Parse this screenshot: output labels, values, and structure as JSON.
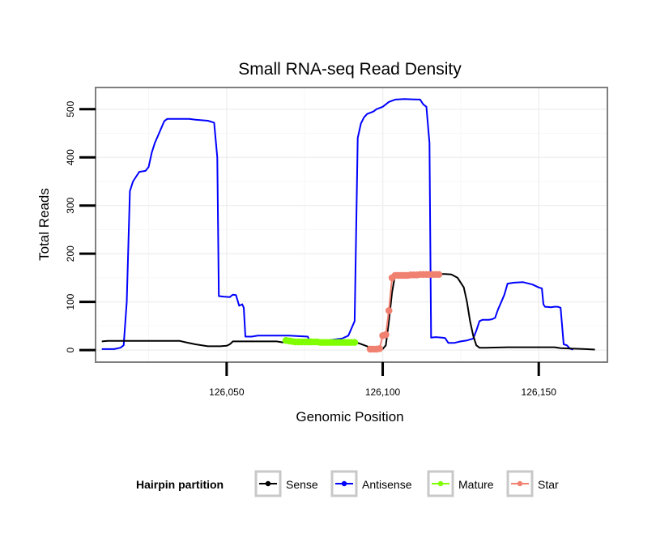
{
  "chart_data": {
    "type": "line",
    "title": "Small RNA-seq Read Density",
    "xlabel": "Genomic Position",
    "ylabel": "Total Reads",
    "xlim": [
      126008,
      126172
    ],
    "ylim": [
      -25,
      545
    ],
    "x_ticks": [
      126050,
      126100,
      126150
    ],
    "x_tick_labels": [
      "126,050",
      "126,100",
      "126,150"
    ],
    "y_ticks": [
      0,
      100,
      200,
      300,
      400,
      500
    ],
    "y_tick_labels": [
      "0",
      "100",
      "200",
      "300",
      "400",
      "500"
    ],
    "grid": true,
    "legend": {
      "title": "Hairpin partition",
      "position": "bottom",
      "entries": [
        "Sense",
        "Antisense",
        "Mature",
        "Star"
      ]
    },
    "series": [
      {
        "name": "Sense",
        "color": "#000000",
        "marker": "line",
        "points": [
          [
            126010,
            18
          ],
          [
            126012,
            19
          ],
          [
            126020,
            19
          ],
          [
            126030,
            19
          ],
          [
            126035,
            19
          ],
          [
            126037,
            16
          ],
          [
            126040,
            12
          ],
          [
            126044,
            8
          ],
          [
            126048,
            8
          ],
          [
            126050,
            9
          ],
          [
            126051,
            12
          ],
          [
            126052,
            18
          ],
          [
            126060,
            18
          ],
          [
            126066,
            18
          ],
          [
            126068,
            16
          ],
          [
            126070,
            20
          ],
          [
            126075,
            20
          ],
          [
            126078,
            17
          ],
          [
            126082,
            16
          ],
          [
            126090,
            16
          ],
          [
            126092,
            15
          ],
          [
            126095,
            8
          ],
          [
            126096,
            2
          ],
          [
            126100,
            2
          ],
          [
            126101,
            10
          ],
          [
            126102,
            60
          ],
          [
            126103,
            120
          ],
          [
            126104,
            157
          ],
          [
            126110,
            158
          ],
          [
            126118,
            158
          ],
          [
            126120,
            158
          ],
          [
            126122,
            157
          ],
          [
            126124,
            150
          ],
          [
            126126,
            130
          ],
          [
            126127,
            100
          ],
          [
            126128,
            60
          ],
          [
            126129,
            30
          ],
          [
            126130,
            10
          ],
          [
            126131,
            5
          ],
          [
            126133,
            5
          ],
          [
            126140,
            6
          ],
          [
            126150,
            6
          ],
          [
            126155,
            6
          ],
          [
            126157,
            4
          ],
          [
            126165,
            2
          ],
          [
            126168,
            1
          ]
        ]
      },
      {
        "name": "Antisense",
        "color": "#0000ff",
        "marker": "line",
        "points": [
          [
            126010,
            2
          ],
          [
            126014,
            2
          ],
          [
            126016,
            5
          ],
          [
            126017,
            10
          ],
          [
            126018,
            100
          ],
          [
            126019,
            330
          ],
          [
            126020,
            350
          ],
          [
            126021,
            360
          ],
          [
            126022,
            370
          ],
          [
            126024,
            372
          ],
          [
            126025,
            380
          ],
          [
            126026,
            410
          ],
          [
            126027,
            430
          ],
          [
            126028,
            445
          ],
          [
            126029,
            460
          ],
          [
            126030,
            475
          ],
          [
            126031,
            480
          ],
          [
            126033,
            480
          ],
          [
            126038,
            480
          ],
          [
            126040,
            478
          ],
          [
            126044,
            476
          ],
          [
            126046,
            472
          ],
          [
            126047,
            400
          ],
          [
            126047.5,
            112
          ],
          [
            126049,
            111
          ],
          [
            126051,
            110
          ],
          [
            126052,
            115
          ],
          [
            126053,
            114
          ],
          [
            126054,
            92
          ],
          [
            126055,
            95
          ],
          [
            126055.5,
            88
          ],
          [
            126056,
            28
          ],
          [
            126058,
            28
          ],
          [
            126060,
            30
          ],
          [
            126070,
            30
          ],
          [
            126076,
            28
          ],
          [
            126076.5,
            20
          ],
          [
            126082,
            20
          ],
          [
            126087,
            24
          ],
          [
            126089,
            30
          ],
          [
            126091,
            60
          ],
          [
            126092,
            440
          ],
          [
            126093,
            470
          ],
          [
            126094,
            483
          ],
          [
            126095,
            490
          ],
          [
            126097,
            495
          ],
          [
            126098,
            500
          ],
          [
            126100,
            505
          ],
          [
            126101,
            510
          ],
          [
            126102,
            515
          ],
          [
            126104,
            520
          ],
          [
            126107,
            521
          ],
          [
            126112,
            520
          ],
          [
            126113,
            510
          ],
          [
            126114,
            505
          ],
          [
            126115,
            430
          ],
          [
            126115.5,
            26
          ],
          [
            126117,
            27
          ],
          [
            126119,
            26
          ],
          [
            126120,
            25
          ],
          [
            126121,
            15
          ],
          [
            126123,
            15
          ],
          [
            126125,
            18
          ],
          [
            126127,
            20
          ],
          [
            126129,
            24
          ],
          [
            126130,
            40
          ],
          [
            126131,
            60
          ],
          [
            126132,
            63
          ],
          [
            126134,
            63
          ],
          [
            126135,
            64
          ],
          [
            126136,
            67
          ],
          [
            126137,
            85
          ],
          [
            126138,
            100
          ],
          [
            126139,
            115
          ],
          [
            126140,
            138
          ],
          [
            126142,
            140
          ],
          [
            126145,
            141
          ],
          [
            126148,
            136
          ],
          [
            126150,
            130
          ],
          [
            126151,
            128
          ],
          [
            126151.5,
            95
          ],
          [
            126152,
            90
          ],
          [
            126154,
            89
          ],
          [
            126155,
            90
          ],
          [
            126156,
            90
          ],
          [
            126157,
            88
          ],
          [
            126158,
            12
          ],
          [
            126159,
            10
          ],
          [
            126160,
            3
          ],
          [
            126161,
            1
          ]
        ]
      },
      {
        "name": "Mature",
        "color": "#80ff00",
        "marker": "dots",
        "points": [
          [
            126069,
            20
          ],
          [
            126070,
            19
          ],
          [
            126071,
            18
          ],
          [
            126072,
            17
          ],
          [
            126073,
            17
          ],
          [
            126074,
            17
          ],
          [
            126075,
            17
          ],
          [
            126076,
            17
          ],
          [
            126077,
            17
          ],
          [
            126078,
            17
          ],
          [
            126079,
            17
          ],
          [
            126080,
            16
          ],
          [
            126081,
            16
          ],
          [
            126082,
            16
          ],
          [
            126083,
            16
          ],
          [
            126084,
            16
          ],
          [
            126085,
            16
          ],
          [
            126086,
            16
          ],
          [
            126087,
            16
          ],
          [
            126088,
            16
          ],
          [
            126089,
            16
          ],
          [
            126090,
            16
          ],
          [
            126091,
            16
          ]
        ]
      },
      {
        "name": "Star",
        "color": "#f08070",
        "marker": "dots",
        "points": [
          [
            126096,
            2
          ],
          [
            126097,
            2
          ],
          [
            126098,
            2
          ],
          [
            126099,
            3
          ],
          [
            126100,
            30
          ],
          [
            126101,
            32
          ],
          [
            126102,
            82
          ],
          [
            126103,
            150
          ],
          [
            126104,
            155
          ],
          [
            126105,
            155
          ],
          [
            126106,
            155
          ],
          [
            126107,
            155
          ],
          [
            126108,
            155
          ],
          [
            126109,
            156
          ],
          [
            126110,
            156
          ],
          [
            126111,
            156
          ],
          [
            126112,
            157
          ],
          [
            126113,
            157
          ],
          [
            126114,
            157
          ],
          [
            126115,
            157
          ],
          [
            126116,
            157
          ],
          [
            126117,
            157
          ],
          [
            126118,
            157
          ]
        ]
      }
    ]
  }
}
